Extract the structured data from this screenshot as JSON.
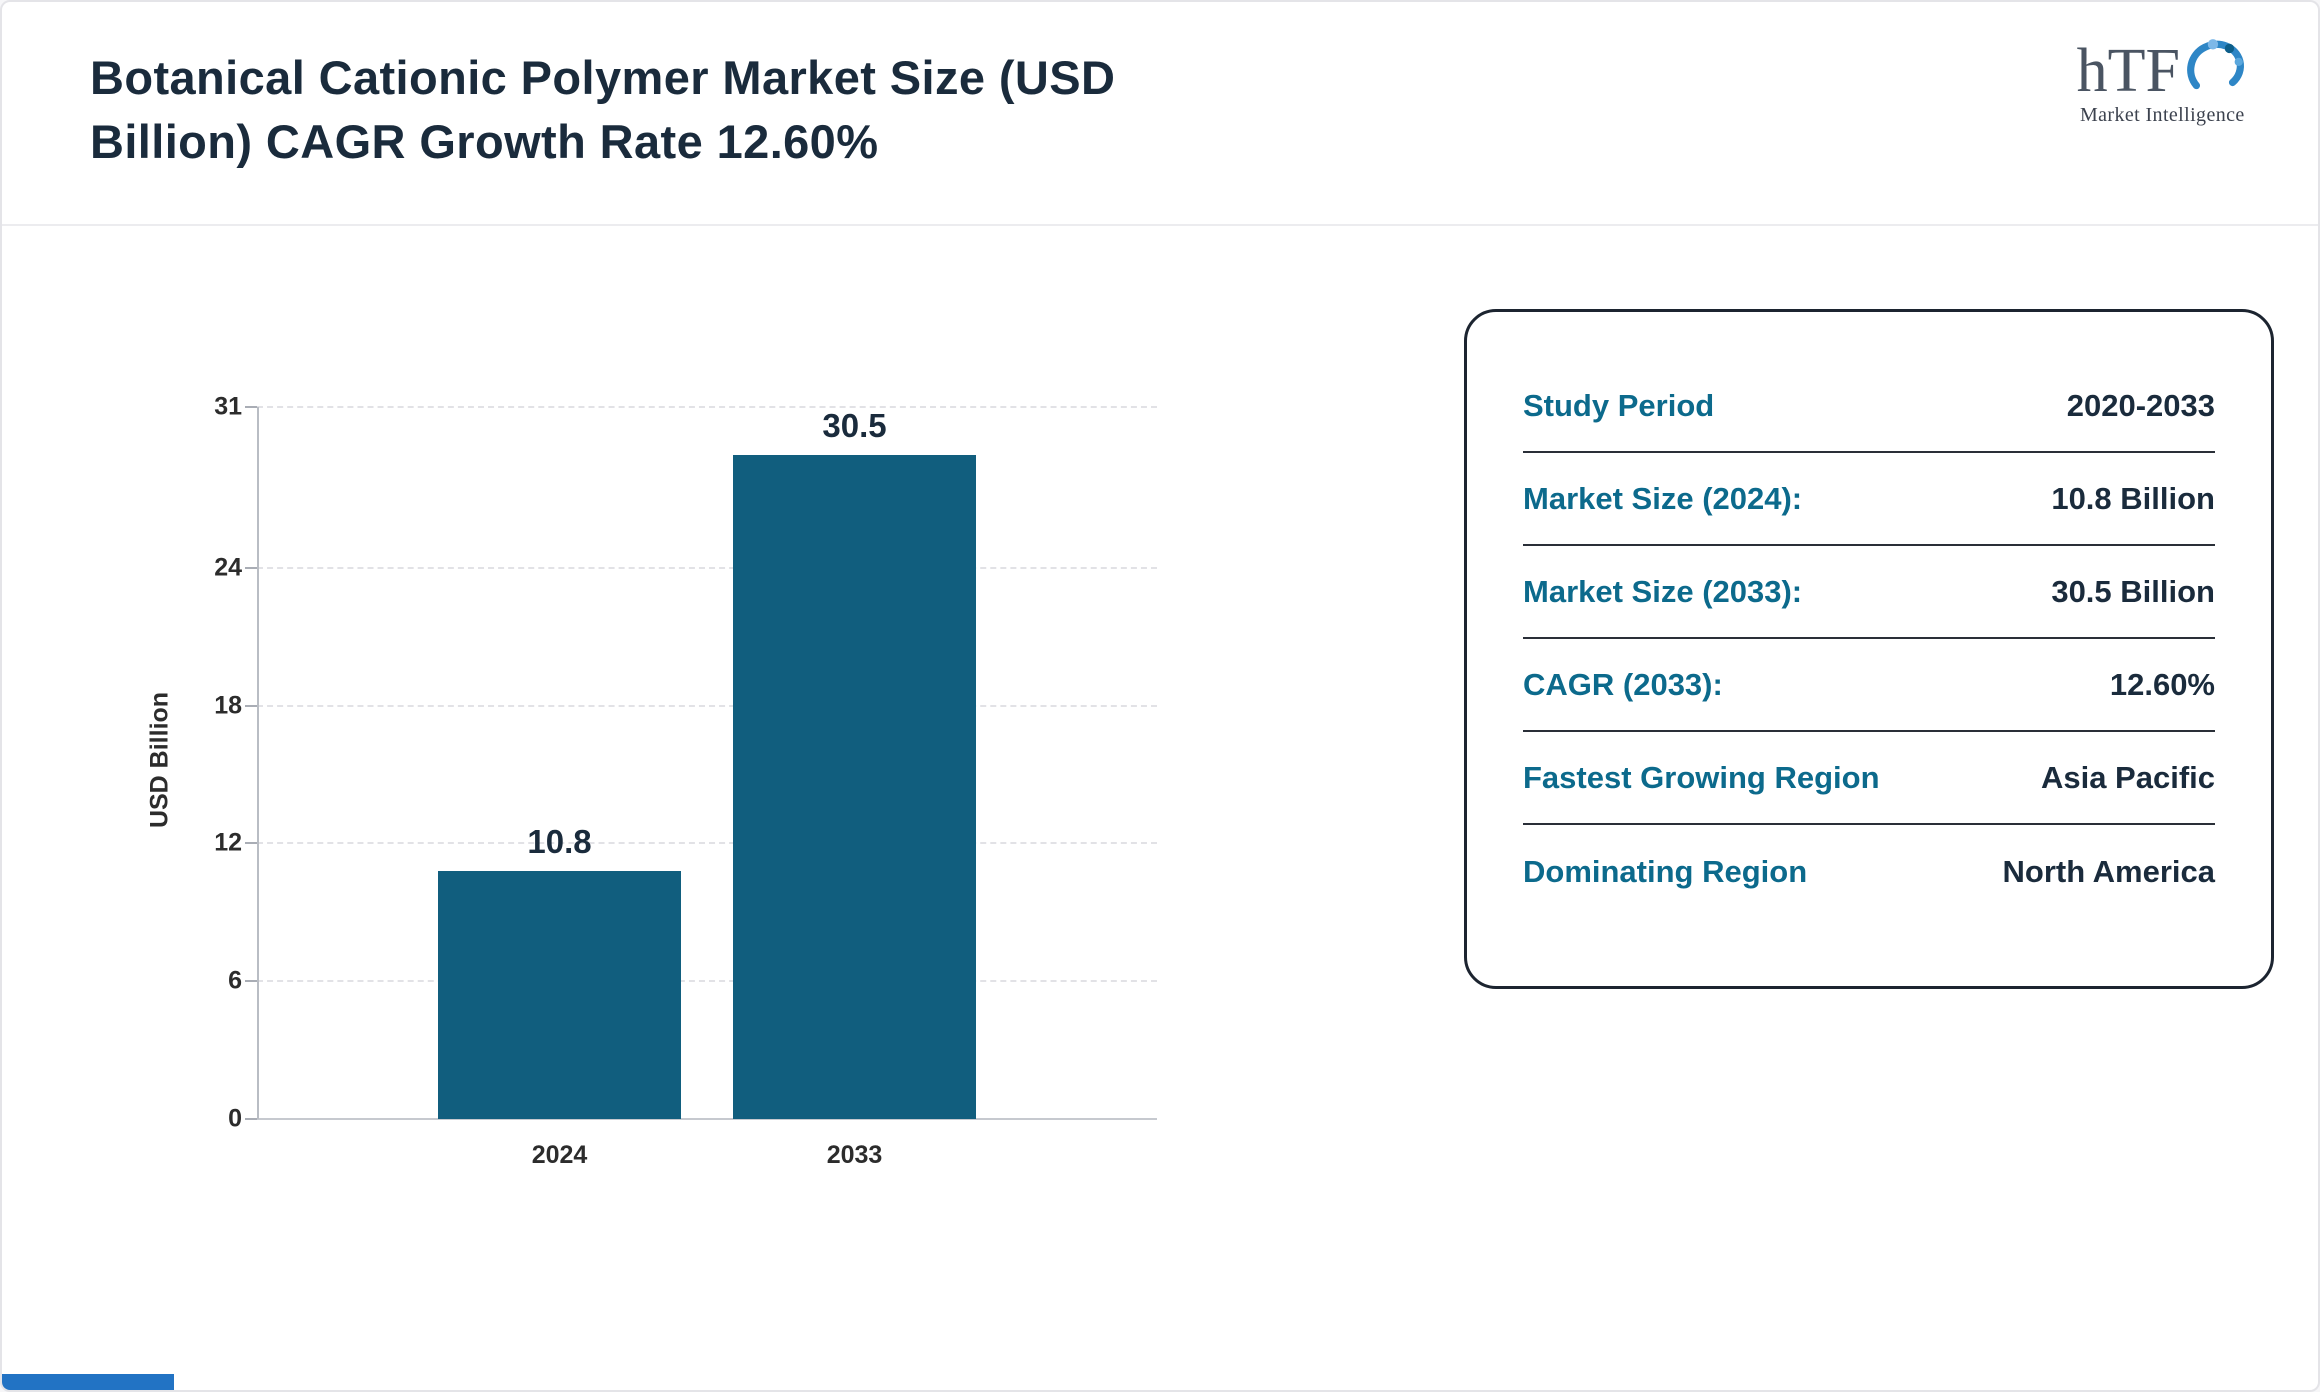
{
  "header": {
    "title_line1": "Botanical Cationic Polymer Market Size (USD",
    "title_line2": "Billion) CAGR Growth Rate 12.60%",
    "logo": {
      "text": "hTF",
      "subtext": "Market Intelligence"
    }
  },
  "chart_data": {
    "type": "bar",
    "title": "Botanical Cationic Polymer Market Size (USD Billion) CAGR Growth Rate 12.60%",
    "categories": [
      "2024",
      "2033"
    ],
    "values": [
      10.8,
      30.5
    ],
    "data_labels": [
      "10.8",
      "30.5"
    ],
    "xlabel": "",
    "ylabel": "USD Billion",
    "yticks": [
      0,
      6,
      12,
      18,
      24,
      31
    ],
    "ylim": [
      0,
      31
    ],
    "grid": "dashed horizontal",
    "legend": "none"
  },
  "info_card": {
    "rows": [
      {
        "label": "Study Period",
        "value": "2020-2033"
      },
      {
        "label": "Market Size (2024):",
        "value": "10.8 Billion"
      },
      {
        "label": "Market Size (2033):",
        "value": "30.5 Billion"
      },
      {
        "label": "CAGR (2033):",
        "value": "12.60%"
      },
      {
        "label": "Fastest Growing Region",
        "value": "Asia Pacific"
      },
      {
        "label": "Dominating Region",
        "value": "North America"
      }
    ]
  },
  "colors": {
    "title": "#1a2b3c",
    "bar": "#115e7e",
    "label_teal": "#0c6a8c",
    "value_dark": "#1a2b3c",
    "footer_accent": "#2273c4"
  }
}
